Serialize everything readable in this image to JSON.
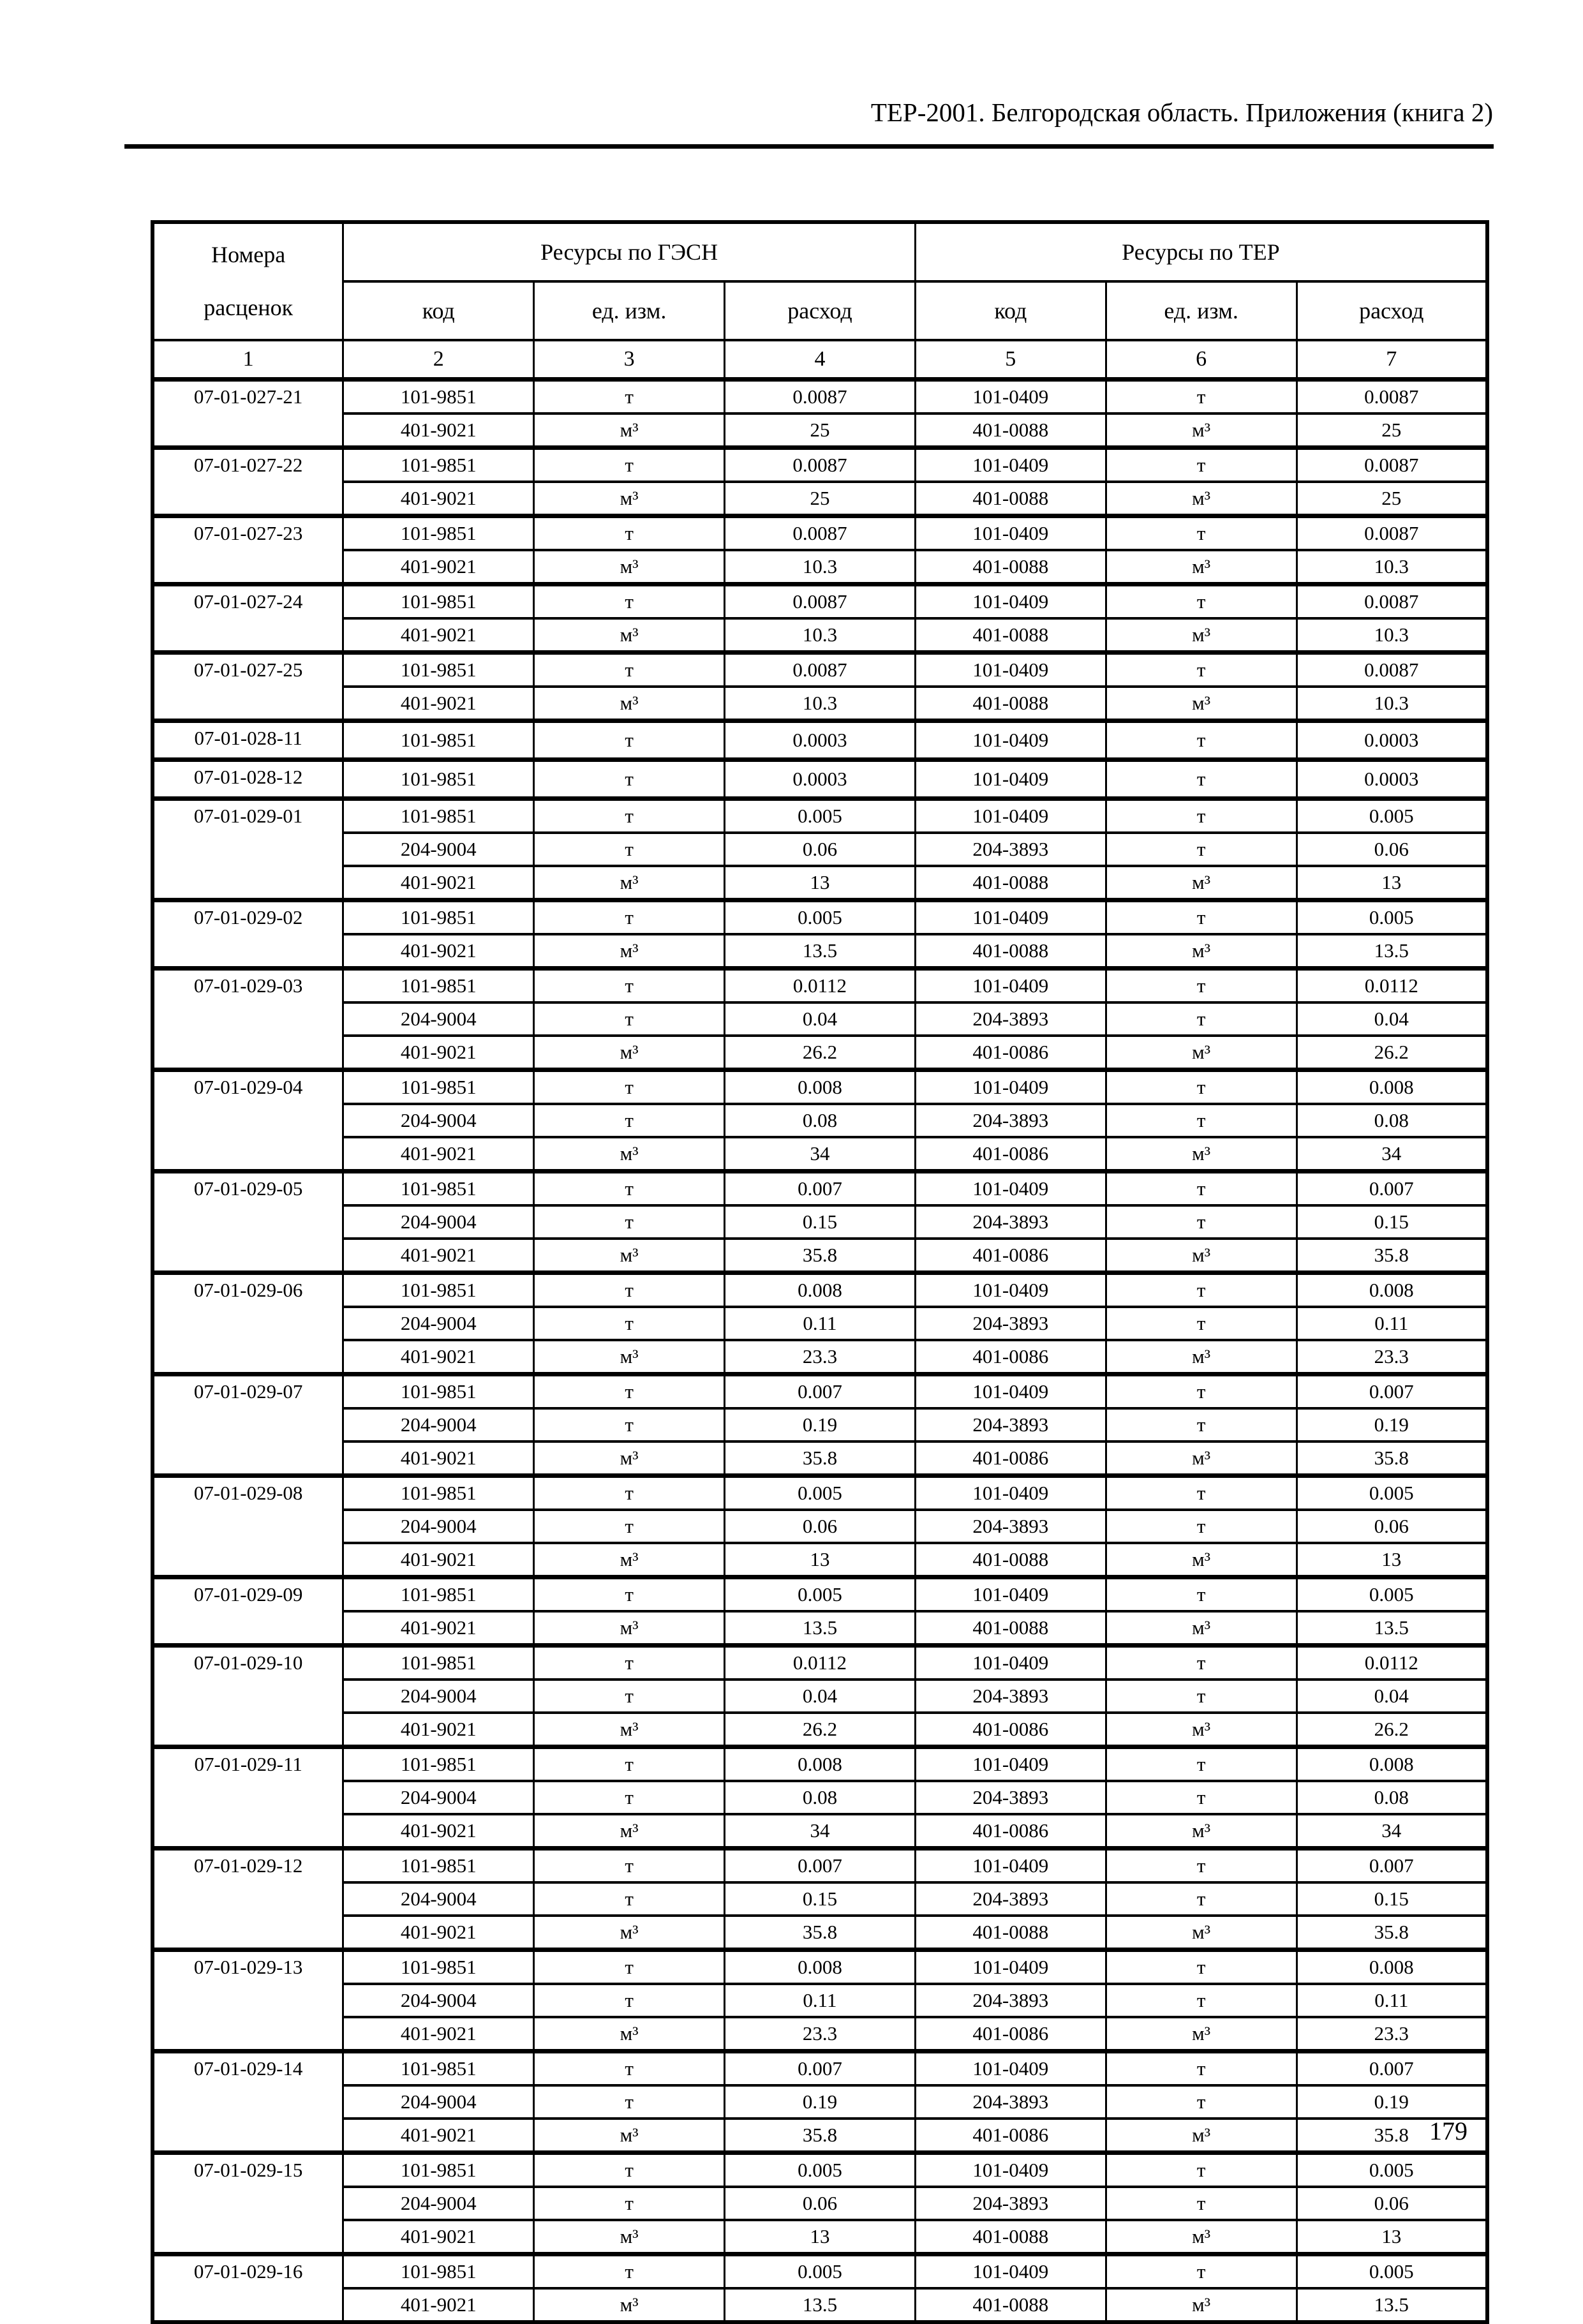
{
  "page": {
    "header_title": "ТЕР-2001. Белгородская область. Приложения (книга 2)",
    "page_number": "179",
    "ink_color": "#000000",
    "paper_color": "#ffffff"
  },
  "table": {
    "col_headers": {
      "rates_line1": "Номера",
      "rates_line2": "расценок",
      "gesn": "Ресурсы по ГЭСН",
      "ter": "Ресурсы по ТЕР",
      "code": "код",
      "unit": "ед. изм.",
      "qty": "расход"
    },
    "col_numbers": [
      "1",
      "2",
      "3",
      "4",
      "5",
      "6",
      "7"
    ],
    "groups": [
      {
        "rate": "07-01-027-21",
        "rows": [
          [
            "101-9851",
            "т",
            "0.0087",
            "101-0409",
            "т",
            "0.0087"
          ],
          [
            "401-9021",
            "м³",
            "25",
            "401-0088",
            "м³",
            "25"
          ]
        ]
      },
      {
        "rate": "07-01-027-22",
        "rows": [
          [
            "101-9851",
            "т",
            "0.0087",
            "101-0409",
            "т",
            "0.0087"
          ],
          [
            "401-9021",
            "м³",
            "25",
            "401-0088",
            "м³",
            "25"
          ]
        ]
      },
      {
        "rate": "07-01-027-23",
        "rows": [
          [
            "101-9851",
            "т",
            "0.0087",
            "101-0409",
            "т",
            "0.0087"
          ],
          [
            "401-9021",
            "м³",
            "10.3",
            "401-0088",
            "м³",
            "10.3"
          ]
        ]
      },
      {
        "rate": "07-01-027-24",
        "rows": [
          [
            "101-9851",
            "т",
            "0.0087",
            "101-0409",
            "т",
            "0.0087"
          ],
          [
            "401-9021",
            "м³",
            "10.3",
            "401-0088",
            "м³",
            "10.3"
          ]
        ]
      },
      {
        "rate": "07-01-027-25",
        "rows": [
          [
            "101-9851",
            "т",
            "0.0087",
            "101-0409",
            "т",
            "0.0087"
          ],
          [
            "401-9021",
            "м³",
            "10.3",
            "401-0088",
            "м³",
            "10.3"
          ]
        ]
      },
      {
        "rate": "07-01-028-11",
        "rows": [
          [
            "101-9851",
            "т",
            "0.0003",
            "101-0409",
            "т",
            "0.0003"
          ]
        ]
      },
      {
        "rate": "07-01-028-12",
        "rows": [
          [
            "101-9851",
            "т",
            "0.0003",
            "101-0409",
            "т",
            "0.0003"
          ]
        ]
      },
      {
        "rate": "07-01-029-01",
        "rows": [
          [
            "101-9851",
            "т",
            "0.005",
            "101-0409",
            "т",
            "0.005"
          ],
          [
            "204-9004",
            "т",
            "0.06",
            "204-3893",
            "т",
            "0.06"
          ],
          [
            "401-9021",
            "м³",
            "13",
            "401-0088",
            "м³",
            "13"
          ]
        ]
      },
      {
        "rate": "07-01-029-02",
        "rows": [
          [
            "101-9851",
            "т",
            "0.005",
            "101-0409",
            "т",
            "0.005"
          ],
          [
            "401-9021",
            "м³",
            "13.5",
            "401-0088",
            "м³",
            "13.5"
          ]
        ]
      },
      {
        "rate": "07-01-029-03",
        "rows": [
          [
            "101-9851",
            "т",
            "0.0112",
            "101-0409",
            "т",
            "0.0112"
          ],
          [
            "204-9004",
            "т",
            "0.04",
            "204-3893",
            "т",
            "0.04"
          ],
          [
            "401-9021",
            "м³",
            "26.2",
            "401-0086",
            "м³",
            "26.2"
          ]
        ]
      },
      {
        "rate": "07-01-029-04",
        "rows": [
          [
            "101-9851",
            "т",
            "0.008",
            "101-0409",
            "т",
            "0.008"
          ],
          [
            "204-9004",
            "т",
            "0.08",
            "204-3893",
            "т",
            "0.08"
          ],
          [
            "401-9021",
            "м³",
            "34",
            "401-0086",
            "м³",
            "34"
          ]
        ]
      },
      {
        "rate": "07-01-029-05",
        "rows": [
          [
            "101-9851",
            "т",
            "0.007",
            "101-0409",
            "т",
            "0.007"
          ],
          [
            "204-9004",
            "т",
            "0.15",
            "204-3893",
            "т",
            "0.15"
          ],
          [
            "401-9021",
            "м³",
            "35.8",
            "401-0086",
            "м³",
            "35.8"
          ]
        ]
      },
      {
        "rate": "07-01-029-06",
        "rows": [
          [
            "101-9851",
            "т",
            "0.008",
            "101-0409",
            "т",
            "0.008"
          ],
          [
            "204-9004",
            "т",
            "0.11",
            "204-3893",
            "т",
            "0.11"
          ],
          [
            "401-9021",
            "м³",
            "23.3",
            "401-0086",
            "м³",
            "23.3"
          ]
        ]
      },
      {
        "rate": "07-01-029-07",
        "rows": [
          [
            "101-9851",
            "т",
            "0.007",
            "101-0409",
            "т",
            "0.007"
          ],
          [
            "204-9004",
            "т",
            "0.19",
            "204-3893",
            "т",
            "0.19"
          ],
          [
            "401-9021",
            "м³",
            "35.8",
            "401-0086",
            "м³",
            "35.8"
          ]
        ]
      },
      {
        "rate": "07-01-029-08",
        "rows": [
          [
            "101-9851",
            "т",
            "0.005",
            "101-0409",
            "т",
            "0.005"
          ],
          [
            "204-9004",
            "т",
            "0.06",
            "204-3893",
            "т",
            "0.06"
          ],
          [
            "401-9021",
            "м³",
            "13",
            "401-0088",
            "м³",
            "13"
          ]
        ]
      },
      {
        "rate": "07-01-029-09",
        "rows": [
          [
            "101-9851",
            "т",
            "0.005",
            "101-0409",
            "т",
            "0.005"
          ],
          [
            "401-9021",
            "м³",
            "13.5",
            "401-0088",
            "м³",
            "13.5"
          ]
        ]
      },
      {
        "rate": "07-01-029-10",
        "rows": [
          [
            "101-9851",
            "т",
            "0.0112",
            "101-0409",
            "т",
            "0.0112"
          ],
          [
            "204-9004",
            "т",
            "0.04",
            "204-3893",
            "т",
            "0.04"
          ],
          [
            "401-9021",
            "м³",
            "26.2",
            "401-0086",
            "м³",
            "26.2"
          ]
        ]
      },
      {
        "rate": "07-01-029-11",
        "rows": [
          [
            "101-9851",
            "т",
            "0.008",
            "101-0409",
            "т",
            "0.008"
          ],
          [
            "204-9004",
            "т",
            "0.08",
            "204-3893",
            "т",
            "0.08"
          ],
          [
            "401-9021",
            "м³",
            "34",
            "401-0086",
            "м³",
            "34"
          ]
        ]
      },
      {
        "rate": "07-01-029-12",
        "rows": [
          [
            "101-9851",
            "т",
            "0.007",
            "101-0409",
            "т",
            "0.007"
          ],
          [
            "204-9004",
            "т",
            "0.15",
            "204-3893",
            "т",
            "0.15"
          ],
          [
            "401-9021",
            "м³",
            "35.8",
            "401-0088",
            "м³",
            "35.8"
          ]
        ]
      },
      {
        "rate": "07-01-029-13",
        "rows": [
          [
            "101-9851",
            "т",
            "0.008",
            "101-0409",
            "т",
            "0.008"
          ],
          [
            "204-9004",
            "т",
            "0.11",
            "204-3893",
            "т",
            "0.11"
          ],
          [
            "401-9021",
            "м³",
            "23.3",
            "401-0086",
            "м³",
            "23.3"
          ]
        ]
      },
      {
        "rate": "07-01-029-14",
        "rows": [
          [
            "101-9851",
            "т",
            "0.007",
            "101-0409",
            "т",
            "0.007"
          ],
          [
            "204-9004",
            "т",
            "0.19",
            "204-3893",
            "т",
            "0.19"
          ],
          [
            "401-9021",
            "м³",
            "35.8",
            "401-0086",
            "м³",
            "35.8"
          ]
        ]
      },
      {
        "rate": "07-01-029-15",
        "rows": [
          [
            "101-9851",
            "т",
            "0.005",
            "101-0409",
            "т",
            "0.005"
          ],
          [
            "204-9004",
            "т",
            "0.06",
            "204-3893",
            "т",
            "0.06"
          ],
          [
            "401-9021",
            "м³",
            "13",
            "401-0088",
            "м³",
            "13"
          ]
        ]
      },
      {
        "rate": "07-01-029-16",
        "rows": [
          [
            "101-9851",
            "т",
            "0.005",
            "101-0409",
            "т",
            "0.005"
          ],
          [
            "401-9021",
            "м³",
            "13.5",
            "401-0088",
            "м³",
            "13.5"
          ]
        ]
      }
    ]
  }
}
